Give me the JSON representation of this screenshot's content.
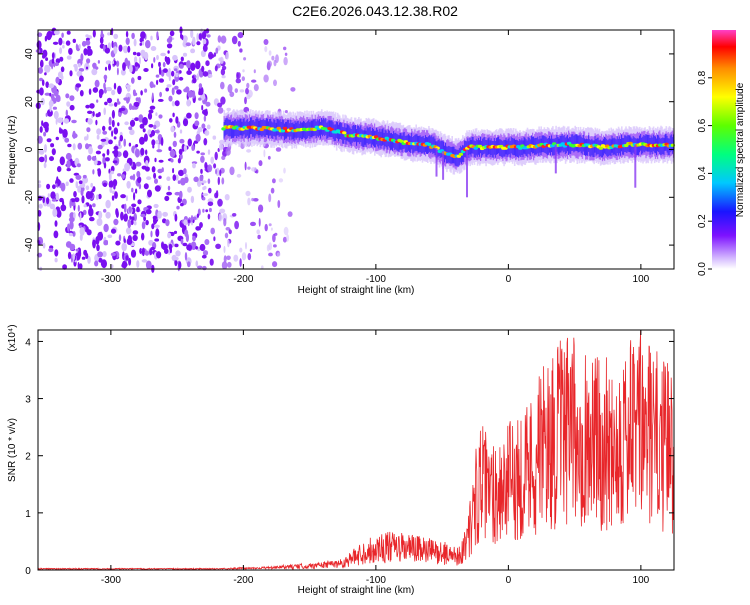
{
  "title": "C2E6.2026.043.12.38.R02",
  "chart_data": [
    {
      "type": "heatmap",
      "xlabel": "Height of straight line (km)",
      "ylabel": "Frequency (Hz)",
      "xlim": [
        -355,
        125
      ],
      "ylim": [
        -50,
        50
      ],
      "x_ticks": [
        -300,
        -200,
        -100,
        0,
        100
      ],
      "x_tick_labels": [
        "-300",
        "-200",
        "-100",
        "0",
        "100"
      ],
      "y_ticks": [
        -40,
        -20,
        0,
        20,
        40
      ],
      "y_tick_labels": [
        "-40",
        "-20",
        "0",
        "20",
        "40"
      ],
      "colorbar": {
        "label": "Normalized spectral amplitude",
        "range": [
          0,
          1
        ],
        "ticks": [
          0,
          0.2,
          0.4,
          0.6,
          0.8
        ],
        "tick_labels": [
          "0.0",
          "0.2",
          "0.4",
          "0.6",
          "0.8"
        ]
      },
      "ridge": {
        "x": [
          -215,
          -190,
          -160,
          -140,
          -120,
          -100,
          -80,
          -60,
          -45,
          -38,
          -30,
          -10,
          10,
          30,
          50,
          70,
          90,
          110,
          125
        ],
        "frequency": [
          9,
          9,
          8,
          9,
          6,
          5,
          3,
          2,
          -2,
          -3,
          1,
          1,
          1,
          2,
          2,
          1,
          2,
          2,
          2
        ]
      },
      "noise_region_x": [
        -355,
        -215
      ]
    },
    {
      "type": "line",
      "xlabel": "Height of straight line (km)",
      "ylabel": "SNR (10 * v/v)",
      "y_multiplier": "(x10⁴)",
      "xlim": [
        -355,
        125
      ],
      "ylim": [
        0,
        4.2
      ],
      "x_ticks": [
        -300,
        -200,
        -100,
        0,
        100
      ],
      "x_tick_labels": [
        "-300",
        "-200",
        "-100",
        "0",
        "100"
      ],
      "y_ticks": [
        0,
        1,
        2,
        3,
        4
      ],
      "y_tick_labels": [
        "0",
        "1",
        "2",
        "3",
        "4"
      ],
      "color": "#e8262a",
      "envelope": {
        "x": [
          -355,
          -220,
          -180,
          -150,
          -125,
          -110,
          -95,
          -75,
          -50,
          -40,
          -35,
          -28,
          -22,
          -15,
          -5,
          5,
          15,
          25,
          40,
          55,
          70,
          85,
          100,
          115,
          125
        ],
        "y": [
          0.02,
          0.02,
          0.04,
          0.07,
          0.12,
          0.3,
          0.4,
          0.38,
          0.3,
          0.25,
          0.3,
          0.8,
          1.6,
          1.35,
          1.45,
          1.6,
          1.8,
          2.1,
          2.4,
          2.4,
          2.2,
          2.3,
          2.5,
          2.2,
          2.1
        ]
      }
    }
  ]
}
